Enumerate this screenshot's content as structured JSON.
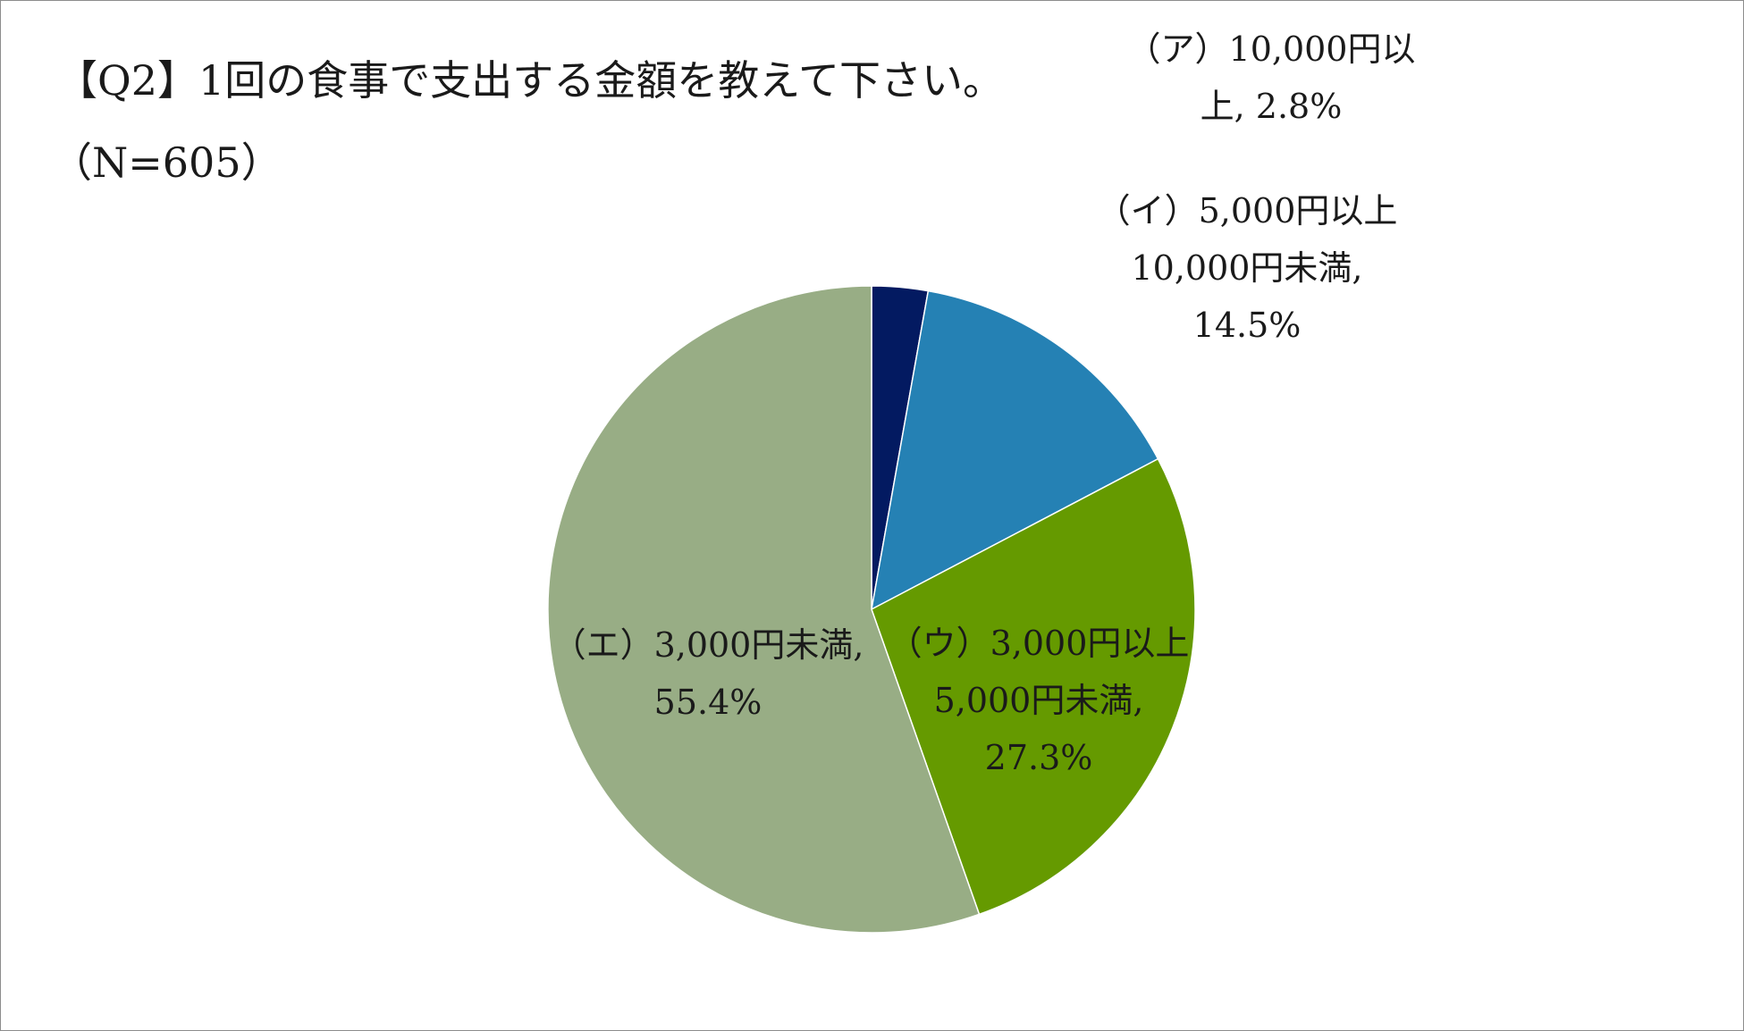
{
  "chart_data": {
    "type": "pie",
    "title": "【Q2】1回の食事で支出する金額を教えて下さい。",
    "subtitle": "（N=605）",
    "start_angle_deg": 0,
    "direction": "clockwise",
    "legend": "none",
    "slices": [
      {
        "label": "（ア）10,000円以上",
        "value": 2.8,
        "value_label": "2.8%",
        "color": "#031a61",
        "label_lines": [
          "（ア）10,000円以",
          "上, 2.8%"
        ]
      },
      {
        "label": "（イ）5,000円以上10,000円未満",
        "value": 14.5,
        "value_label": "14.5%",
        "color": "#2581b4",
        "label_lines": [
          "（イ）5,000円以上",
          "10,000円未満,",
          "14.5%"
        ]
      },
      {
        "label": "（ウ）3,000円以上5,000円未満",
        "value": 27.3,
        "value_label": "27.3%",
        "color": "#659a00",
        "label_lines": [
          "（ウ）3,000円以上",
          "5,000円未満,",
          "27.3%"
        ]
      },
      {
        "label": "（エ）3,000円未満",
        "value": 55.4,
        "value_label": "55.4%",
        "color": "#98ad85",
        "label_lines": [
          "（エ）3,000円未満,",
          "55.4%"
        ]
      }
    ]
  }
}
